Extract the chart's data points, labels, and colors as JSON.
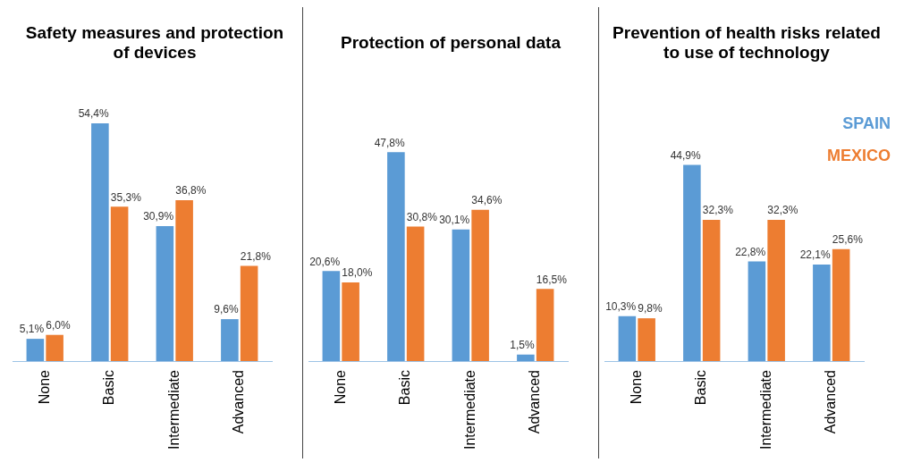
{
  "chart_data": [
    {
      "type": "bar",
      "title": "Safety measures and protection of devices",
      "categories": [
        "None",
        "Basic",
        "Intermediate",
        "Advanced"
      ],
      "tick_labels": "x",
      "series": [
        {
          "color": "#5b9bd5",
          "values": [
            5.1,
            54.4,
            30.9,
            9.6
          ],
          "value_labels": [
            "5,1%",
            "54,4%",
            "30,9%",
            "9,6%"
          ]
        },
        {
          "color": "#ed7d31",
          "values": [
            6.0,
            35.3,
            36.8,
            21.8
          ],
          "value_labels": [
            "6,0%",
            "35,3%",
            "36,8%",
            "21,8%"
          ]
        }
      ]
    },
    {
      "type": "bar",
      "title": "Protection of personal data",
      "categories": [
        "None",
        "Basic",
        "Intermediate",
        "Advanced"
      ],
      "tick_labels": "x",
      "series": [
        {
          "color": "#5b9bd5",
          "values": [
            20.6,
            47.8,
            30.1,
            1.5
          ],
          "value_labels": [
            "20,6%",
            "47,8%",
            "30,1%",
            "1,5%"
          ]
        },
        {
          "color": "#ed7d31",
          "values": [
            18.0,
            30.8,
            34.6,
            16.5
          ],
          "value_labels": [
            "18,0%",
            "30,8%",
            "34,6%",
            "16,5%"
          ]
        }
      ]
    },
    {
      "type": "bar",
      "title": "Prevention of health risks related to use of technology",
      "categories": [
        "None",
        "Basic",
        "Intermediate",
        "Advanced"
      ],
      "tick_labels": "x",
      "legend": "top right",
      "series": [
        {
          "name": "SPAIN",
          "color": "#5b9bd5",
          "values": [
            10.3,
            44.9,
            22.8,
            22.1
          ],
          "value_labels": [
            "10,3%",
            "44,9%",
            "22,8%",
            "22,1%"
          ]
        },
        {
          "name": "MEXICO",
          "color": "#ed7d31",
          "values": [
            9.8,
            32.3,
            32.3,
            25.6
          ],
          "value_labels": [
            "9,8%",
            "32,3%",
            "32,3%",
            "25,6%"
          ]
        }
      ]
    }
  ]
}
